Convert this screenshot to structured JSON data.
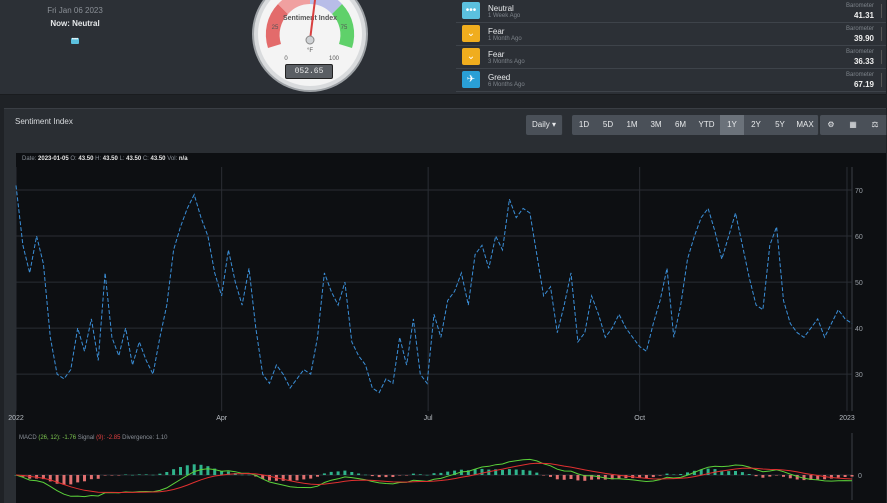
{
  "status": {
    "date": "Fri Jan 06 2023",
    "now": "Now: Neutral"
  },
  "gauge": {
    "title": "Sentiment Index",
    "ticks": [
      "0",
      "25",
      "50",
      "75",
      "100"
    ],
    "unit": "°F",
    "readout": "052.65",
    "value": 52.65
  },
  "history": [
    {
      "name": "Neutral",
      "ago": "1 Week Ago",
      "label": "Barometer",
      "value": "41.31",
      "color": "#5bc0de",
      "icon": "dots-icon"
    },
    {
      "name": "Fear",
      "ago": "1 Month Ago",
      "label": "Barometer",
      "value": "39.90",
      "color": "#f0ad1e",
      "icon": "chevron-down-icon"
    },
    {
      "name": "Fear",
      "ago": "3 Months Ago",
      "label": "Barometer",
      "value": "36.33",
      "color": "#f0ad1e",
      "icon": "chevron-down-icon"
    },
    {
      "name": "Greed",
      "ago": "6 Months Ago",
      "label": "Barometer",
      "value": "67.19",
      "color": "#2a9fd6",
      "icon": "rocket-icon"
    }
  ],
  "panel": {
    "title": "Sentiment Index",
    "interval": "Daily ▾",
    "ranges": [
      "1D",
      "5D",
      "1M",
      "3M",
      "6M",
      "YTD",
      "1Y",
      "2Y",
      "5Y",
      "MAX"
    ],
    "active_range": "1Y"
  },
  "ohlc": {
    "date_label": "Date:",
    "date": "2023-01-05",
    "o_label": "O:",
    "o": "43.50",
    "h_label": "H:",
    "h": "43.50",
    "l_label": "L:",
    "l": "43.50",
    "c_label": "C:",
    "c": "43.50",
    "vol_label": "Vol:",
    "vol": "n/a"
  },
  "macd": {
    "label": "MACD",
    "params": "(26, 12):",
    "value": "-1.76",
    "signal_label": "Signal",
    "signal_param": "(9):",
    "signal": "-2.85",
    "div_label": "Divergence:",
    "divergence": "1.10"
  },
  "chart_data": {
    "type": "line",
    "x_ticks": [
      "2022",
      "Apr",
      "Jul",
      "Oct",
      "2023"
    ],
    "y_ticks": [
      30,
      40,
      50,
      60,
      70
    ],
    "ylim": [
      22,
      75
    ],
    "macd_zero_label": "0",
    "values": [
      71,
      58,
      52,
      60,
      54,
      38,
      30,
      29,
      31,
      40,
      35,
      42,
      33,
      52,
      38,
      34,
      40,
      32,
      37,
      33,
      30,
      38,
      45,
      57,
      62,
      66,
      69,
      64,
      60,
      52,
      47,
      57,
      50,
      45,
      53,
      40,
      30,
      28,
      32,
      30,
      27,
      29,
      31,
      30,
      38,
      52,
      48,
      45,
      50,
      37,
      34,
      32,
      27,
      26,
      29,
      28,
      38,
      32,
      42,
      30,
      28,
      43,
      38,
      46,
      48,
      52,
      45,
      56,
      58,
      53,
      60,
      57,
      68,
      64,
      66,
      65,
      56,
      47,
      49,
      39,
      45,
      52,
      37,
      39,
      47,
      43,
      38,
      40,
      43,
      40,
      38,
      36,
      35,
      41,
      46,
      53,
      38,
      45,
      55,
      60,
      64,
      66,
      61,
      55,
      60,
      65,
      58,
      51,
      45,
      44,
      58,
      62,
      46,
      41,
      39,
      38,
      40,
      42,
      38,
      41,
      44,
      42,
      41
    ]
  }
}
